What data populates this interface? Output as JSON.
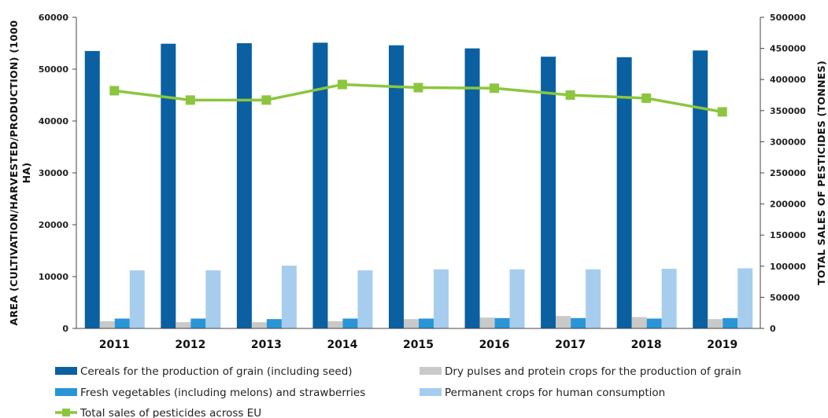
{
  "chart_data": {
    "type": "bar",
    "categories": [
      "2011",
      "2012",
      "2013",
      "2014",
      "2015",
      "2016",
      "2017",
      "2018",
      "2019"
    ],
    "series": [
      {
        "name": "Cereals for the production of grain (including seed)",
        "kind": "bar",
        "axis": "left",
        "color": "#0a60a0",
        "values": [
          53500,
          54900,
          55000,
          55100,
          54600,
          54000,
          52400,
          52300,
          53600
        ]
      },
      {
        "name": "Dry pulses and protein crops for the production of grain",
        "kind": "bar",
        "axis": "left",
        "color": "#c9c9c9",
        "values": [
          1400,
          1200,
          1200,
          1400,
          1800,
          2100,
          2400,
          2200,
          1800
        ]
      },
      {
        "name": "Fresh vegetables (including melons) and strawberries",
        "kind": "bar",
        "axis": "left",
        "color": "#2a95d6",
        "values": [
          1900,
          1900,
          1800,
          1900,
          1900,
          2000,
          2000,
          1900,
          2000
        ]
      },
      {
        "name": "Permanent crops for human consumption",
        "kind": "bar",
        "axis": "left",
        "color": "#a7cdee",
        "values": [
          11200,
          11200,
          12100,
          11200,
          11400,
          11400,
          11400,
          11500,
          11600
        ]
      },
      {
        "name": "Total sales of pesticides across EU",
        "kind": "line",
        "axis": "right",
        "color": "#8cc63f",
        "values": [
          382000,
          367000,
          367000,
          392000,
          387000,
          386000,
          375000,
          370000,
          348000
        ]
      }
    ],
    "ylabel": "AREA (CULTIVATION/HARVESTED/PRODUCTION) (1000 HA)",
    "ylabel_lines": [
      "AREA (CULTIVATION/HARVESTED/PRODUCTION) (1000",
      "HA)"
    ],
    "y2label": "TOTAL SALES OF PESTICIDES (TONNES)",
    "ylim": [
      0,
      60000
    ],
    "y_ticks": [
      "0",
      "10000",
      "20000",
      "30000",
      "40000",
      "50000",
      "60000"
    ],
    "y2lim": [
      0,
      500000
    ],
    "y2_ticks": [
      "0",
      "50000",
      "100000",
      "150000",
      "200000",
      "250000",
      "300000",
      "350000",
      "400000",
      "450000",
      "500000"
    ],
    "grid": false,
    "legend_position": "bottom"
  }
}
